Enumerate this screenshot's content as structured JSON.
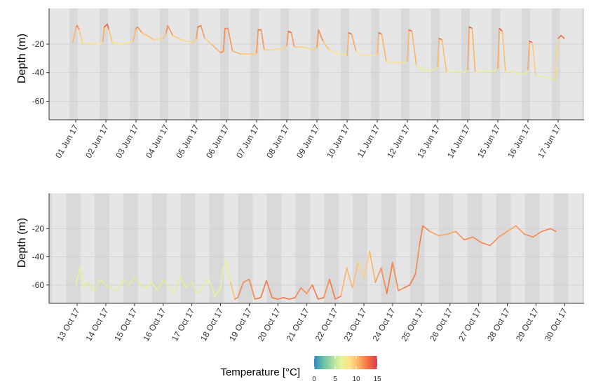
{
  "chart_data": [
    {
      "type": "line",
      "panel": "top",
      "ylabel": "Depth (m)",
      "ylim": [
        -73,
        5
      ],
      "y_ticks": [
        -20,
        -40,
        -60
      ],
      "x_ticks": [
        "01 Jun 17",
        "02 Jun 17",
        "03 Jun 17",
        "04 Jun 17",
        "05 Jun 17",
        "06 Jun 17",
        "07 Jun 17",
        "08 Jun 17",
        "09 Jun 17",
        "10 Jun 17",
        "11 Jun 17",
        "12 Jun 17",
        "13 Jun 17",
        "14 Jun 17",
        "15 Jun 17",
        "16 Jun 17",
        "17 Jun 17"
      ],
      "xlim_days": [
        -0.55,
        17.35
      ],
      "grid": true,
      "band_pattern": "weekly",
      "series": [
        {
          "x_days": [
            -0.1,
            0.02,
            0.05,
            0.12,
            0.22,
            0.8,
            0.9,
            0.95,
            1.05,
            1.1,
            1.22,
            1.5,
            1.9,
            2.0,
            2.05,
            2.2,
            2.6,
            2.9,
            3.0,
            3.05,
            3.22,
            3.5,
            3.9,
            4.0,
            4.05,
            4.15,
            4.28,
            4.5,
            4.8,
            4.9,
            4.95,
            5.05,
            5.2,
            5.5,
            5.9,
            6.0,
            6.05,
            6.15,
            6.25,
            6.5,
            6.9,
            7.0,
            7.05,
            7.15,
            7.25,
            7.5,
            7.9,
            8.0,
            8.05,
            8.2,
            8.4,
            8.6,
            8.9,
            9.0,
            9.05,
            9.15,
            9.3,
            9.5,
            9.9,
            10.0,
            10.05,
            10.15,
            10.3,
            10.5,
            10.9,
            11.0,
            11.05,
            11.15,
            11.3,
            11.5,
            11.9,
            12.0,
            12.05,
            12.15,
            12.3,
            12.6,
            12.9,
            13.0,
            13.05,
            13.15,
            13.25,
            13.5,
            13.9,
            14.0,
            14.05,
            14.15,
            14.25,
            14.6,
            14.9,
            15.0,
            15.05,
            15.15,
            15.25,
            15.6,
            15.9,
            16.0,
            16.1,
            16.2
          ],
          "depth": [
            -19,
            -8,
            -7,
            -10,
            -19,
            -20,
            -18,
            -8,
            -6,
            -10,
            -19,
            -20,
            -18,
            -9,
            -8,
            -12,
            -17,
            -16,
            -12,
            -7,
            -14,
            -17,
            -19,
            -16,
            -8,
            -7,
            -16,
            -20,
            -26,
            -25,
            -9,
            -9,
            -25,
            -27,
            -27,
            -26,
            -10,
            -10,
            -24,
            -24,
            -23,
            -21,
            -11,
            -12,
            -22,
            -22,
            -24,
            -22,
            -10,
            -18,
            -24,
            -26,
            -27,
            -28,
            -12,
            -13,
            -25,
            -28,
            -28,
            -27,
            -12,
            -13,
            -32,
            -33,
            -33,
            -32,
            -10,
            -11,
            -35,
            -38,
            -38,
            -36,
            -16,
            -17,
            -40,
            -39,
            -40,
            -38,
            -8,
            -9,
            -40,
            -39,
            -39,
            -37,
            -9,
            -11,
            -39,
            -40,
            -41,
            -38,
            -18,
            -19,
            -42,
            -43,
            -45,
            -16,
            -14,
            -16
          ],
          "temperature_c": [
            9,
            12,
            13,
            11,
            8,
            8,
            9,
            13,
            14,
            12,
            8,
            8,
            9,
            12,
            12,
            11,
            9,
            9,
            11,
            13,
            10,
            9,
            9,
            10,
            13,
            13,
            10,
            9,
            12,
            12,
            12,
            12,
            11,
            10,
            9,
            10,
            13,
            13,
            10,
            9,
            9,
            10,
            13,
            13,
            10,
            9,
            9,
            10,
            13,
            11,
            9,
            8,
            8,
            8,
            13,
            13,
            9,
            8,
            8,
            8,
            13,
            13,
            8,
            8,
            8,
            8,
            13,
            13,
            8,
            7,
            7,
            8,
            13,
            13,
            7,
            7,
            7,
            8,
            14,
            14,
            7,
            7,
            7,
            8,
            14,
            13,
            7,
            7,
            7,
            8,
            14,
            13,
            6,
            6,
            6,
            12,
            14,
            12
          ]
        }
      ]
    },
    {
      "type": "line",
      "panel": "bottom",
      "ylabel": "Depth (m)",
      "ylim": [
        -73,
        5
      ],
      "y_ticks": [
        -20,
        -40,
        -60
      ],
      "x_ticks": [
        "13 Oct 17",
        "14 Oct 17",
        "15 Oct 17",
        "16 Oct 17",
        "17 Oct 17",
        "18 Oct 17",
        "19 Oct 17",
        "20 Oct 17",
        "21 Oct 17",
        "22 Oct 17",
        "23 Oct 17",
        "24 Oct 17",
        "25 Oct 17",
        "26 Oct 17",
        "27 Oct 17",
        "28 Oct 17",
        "29 Oct 17",
        "30 Oct 17"
      ],
      "xlim_days": [
        -0.55,
        17.3
      ],
      "grid": true,
      "band_pattern": "alternating",
      "series": [
        {
          "x_days": [
            -0.05,
            0.1,
            0.25,
            0.4,
            0.6,
            0.8,
            1.0,
            1.2,
            1.4,
            1.6,
            1.8,
            2.0,
            2.2,
            2.4,
            2.6,
            2.8,
            3.0,
            3.2,
            3.4,
            3.6,
            3.8,
            4.0,
            4.2,
            4.4,
            4.6,
            4.8,
            5.0,
            5.1,
            5.2,
            5.35,
            5.5,
            5.6,
            5.8,
            6.0,
            6.2,
            6.4,
            6.6,
            6.8,
            7.0,
            7.2,
            7.4,
            7.6,
            7.8,
            8.0,
            8.2,
            8.4,
            8.6,
            8.8,
            9.0,
            9.2,
            9.4,
            9.6,
            9.8,
            10.0,
            10.2,
            10.4,
            10.6,
            10.8,
            11.0,
            11.2,
            11.4,
            11.6,
            11.8,
            11.95,
            12.05,
            12.3,
            12.6,
            12.9,
            13.2,
            13.5,
            13.8,
            14.1,
            14.4,
            14.7,
            15.0,
            15.3,
            15.6,
            15.9,
            16.2,
            16.5,
            16.7
          ],
          "depth": [
            -60,
            -48,
            -62,
            -58,
            -65,
            -56,
            -60,
            -62,
            -64,
            -56,
            -60,
            -54,
            -60,
            -62,
            -58,
            -64,
            -56,
            -62,
            -66,
            -54,
            -62,
            -58,
            -66,
            -60,
            -56,
            -68,
            -62,
            -48,
            -42,
            -58,
            -70,
            -69,
            -58,
            -56,
            -70,
            -69,
            -57,
            -69,
            -70,
            -69,
            -70,
            -69,
            -62,
            -66,
            -60,
            -70,
            -69,
            -56,
            -70,
            -68,
            -48,
            -62,
            -44,
            -55,
            -36,
            -58,
            -48,
            -66,
            -44,
            -64,
            -62,
            -60,
            -52,
            -30,
            -18,
            -22,
            -25,
            -24,
            -22,
            -28,
            -26,
            -30,
            -32,
            -26,
            -22,
            -18,
            -24,
            -26,
            -22,
            -20,
            -22
          ],
          "temperature_c": [
            6,
            7,
            6,
            6,
            6,
            6,
            6,
            6,
            6,
            6,
            6,
            6,
            6,
            6,
            7,
            6,
            6,
            6,
            6,
            6,
            6,
            6,
            6,
            6,
            7,
            7,
            6,
            7,
            7,
            8,
            12,
            12,
            12,
            12,
            12,
            13,
            12,
            13,
            12,
            12,
            13,
            12,
            12,
            12,
            12,
            13,
            12,
            12,
            13,
            12,
            9,
            12,
            8,
            10,
            9,
            12,
            11,
            13,
            12,
            12,
            12,
            13,
            12,
            12,
            13,
            11,
            11,
            11,
            11,
            12,
            12,
            12,
            12,
            12,
            11,
            11,
            12,
            12,
            12,
            12,
            12
          ]
        }
      ]
    }
  ],
  "legend": {
    "title": "Temperature [°C]",
    "ticks": [
      "0",
      "5",
      "10",
      "15"
    ],
    "min": 0,
    "max": 15,
    "palette": [
      "#3288bd",
      "#66c2a5",
      "#abdda4",
      "#e6f598",
      "#fee08b",
      "#fdae61",
      "#f46d43",
      "#d53e4f"
    ]
  }
}
